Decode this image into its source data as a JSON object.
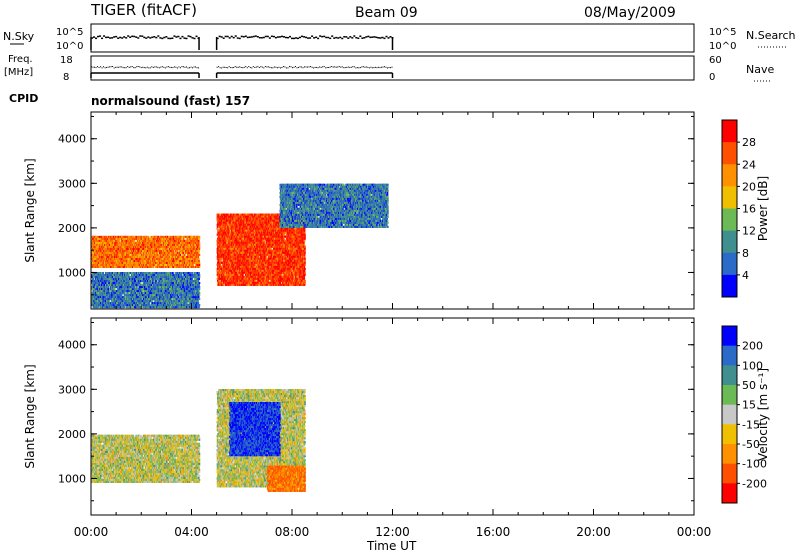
{
  "header": {
    "station": "TIGER (fitACF)",
    "beam": "Beam 09",
    "date": "08/May/2009"
  },
  "aux": {
    "nsky_label": "N.Sky",
    "nsearch_label": "N.Search",
    "nsky_ticks": [
      "10^5",
      "10^0"
    ],
    "freq_label_line1": "Freq.",
    "freq_label_line2": "[MHz]",
    "freq_ticks": [
      "18",
      "8"
    ],
    "nave_label": "Nave",
    "nave_ticks": [
      "60",
      "0"
    ],
    "cpid_label": "CPID",
    "cpid_value": "normalsound (fast) 157"
  },
  "chart_data": [
    {
      "type": "heatmap",
      "name": "power-panel",
      "ylabel": "Slant Range [km]",
      "xlabel": "",
      "xlim": [
        "00:00",
        "24:00"
      ],
      "ylim": [
        180,
        4600
      ],
      "yticks": [
        1000,
        2000,
        3000,
        4000
      ],
      "colorbar": {
        "label": "Power [dB]",
        "ticks": [
          4,
          8,
          12,
          16,
          20,
          24,
          28
        ],
        "range": [
          0,
          32
        ],
        "colors": [
          "#0000ff",
          "#2a6ac8",
          "#3f8f8f",
          "#6cba55",
          "#f0c000",
          "#ff9000",
          "#ff5000",
          "#ff0000"
        ]
      },
      "data_gap_hours": [
        4.3,
        5.0
      ],
      "data_end_hour": 12.0,
      "regions": [
        {
          "t0": 0.0,
          "t1": 4.3,
          "r0": 1100,
          "r1": 1800,
          "value": 24
        },
        {
          "t0": 5.0,
          "t1": 8.5,
          "r0": 700,
          "r1": 2300,
          "value": 28
        },
        {
          "t0": 7.5,
          "t1": 11.8,
          "r0": 2000,
          "r1": 3000,
          "value": 8
        },
        {
          "t0": 0.0,
          "t1": 4.3,
          "r0": 200,
          "r1": 1000,
          "value": 8
        }
      ]
    },
    {
      "type": "heatmap",
      "name": "velocity-panel",
      "ylabel": "Slant Range [km]",
      "xlabel": "Time UT",
      "xlim": [
        "00:00",
        "24:00"
      ],
      "ylim": [
        180,
        4600
      ],
      "yticks": [
        1000,
        2000,
        3000,
        4000
      ],
      "xticks": [
        "00:00",
        "04:00",
        "08:00",
        "12:00",
        "16:00",
        "20:00",
        "00:00"
      ],
      "colorbar": {
        "label": "Velocity [m s⁻¹]",
        "ticks": [
          "200",
          "100",
          "50",
          "15",
          "-15",
          "-50",
          "-100",
          "-200"
        ],
        "colors": [
          "#0000ff",
          "#2a6ac8",
          "#3f8f8f",
          "#6cba55",
          "#c8c8c8",
          "#f0c000",
          "#ff9000",
          "#ff5000",
          "#ff0000"
        ]
      },
      "data_gap_hours": [
        4.3,
        5.0
      ],
      "data_end_hour": 12.0,
      "regions": [
        {
          "t0": 0.0,
          "t1": 4.3,
          "r0": 900,
          "r1": 2000,
          "value": 0
        },
        {
          "t0": 5.0,
          "t1": 8.5,
          "r0": 800,
          "r1": 3000,
          "value": 0
        },
        {
          "t0": 5.5,
          "t1": 7.5,
          "r0": 1500,
          "r1": 2700,
          "value": 200
        },
        {
          "t0": 7.0,
          "t1": 8.5,
          "r0": 700,
          "r1": 1300,
          "value": -100
        }
      ]
    }
  ]
}
